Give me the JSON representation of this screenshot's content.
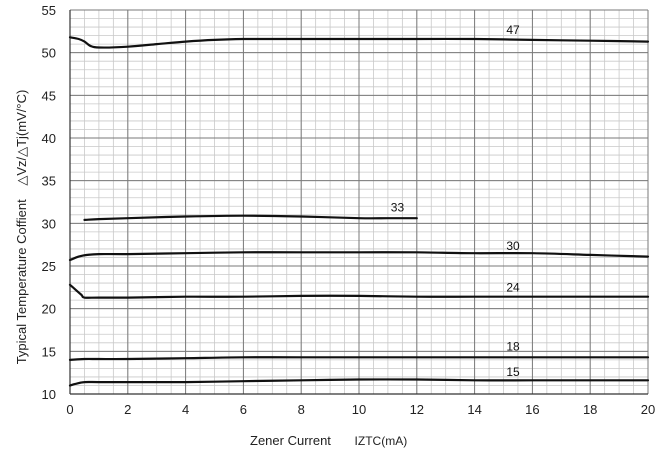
{
  "chart_data": {
    "type": "line",
    "title": "",
    "xlabel": "Zener Current",
    "xlabel_unit": "IZTC(mA)",
    "ylabel": "Typical Temperature Coffient",
    "ylabel_unit": "△Vz/△Tj(mV/°C)",
    "xlim": [
      0,
      20
    ],
    "ylim": [
      10,
      55
    ],
    "xticks": [
      0,
      2,
      4,
      6,
      8,
      10,
      12,
      14,
      16,
      18,
      20
    ],
    "yticks": [
      10,
      15,
      20,
      25,
      30,
      35,
      40,
      45,
      50,
      55
    ],
    "grid": true,
    "minor_grid_x_step": 0.5,
    "minor_grid_y_step": 1,
    "line_color": "#111111",
    "series": [
      {
        "name": "47",
        "label_at": [
          15.1,
          52.2
        ],
        "x": [
          0,
          0.3,
          0.5,
          0.7,
          1,
          2,
          3,
          4,
          5,
          6,
          8,
          10,
          12,
          14,
          16,
          18,
          20
        ],
        "y": [
          51.8,
          51.6,
          51.3,
          50.8,
          50.6,
          50.7,
          51.0,
          51.3,
          51.5,
          51.6,
          51.6,
          51.6,
          51.6,
          51.6,
          51.5,
          51.4,
          51.3
        ]
      },
      {
        "name": "33",
        "label_at": [
          11.1,
          31.4
        ],
        "x": [
          0.5,
          1,
          2,
          4,
          6,
          8,
          10,
          11,
          12
        ],
        "y": [
          30.4,
          30.5,
          30.6,
          30.8,
          30.9,
          30.8,
          30.6,
          30.6,
          30.6
        ]
      },
      {
        "name": "30",
        "label_at": [
          15.1,
          26.9
        ],
        "x": [
          0,
          0.3,
          0.6,
          1,
          2,
          4,
          6,
          8,
          10,
          12,
          14,
          16,
          18,
          20
        ],
        "y": [
          25.7,
          26.1,
          26.3,
          26.4,
          26.4,
          26.5,
          26.6,
          26.6,
          26.6,
          26.6,
          26.5,
          26.5,
          26.3,
          26.1
        ]
      },
      {
        "name": "24",
        "label_at": [
          15.1,
          22.0
        ],
        "x": [
          0,
          0.2,
          0.4,
          0.5,
          1,
          2,
          4,
          6,
          8,
          10,
          12,
          14,
          16,
          18,
          20
        ],
        "y": [
          22.8,
          22.2,
          21.6,
          21.3,
          21.3,
          21.3,
          21.4,
          21.4,
          21.5,
          21.5,
          21.4,
          21.4,
          21.4,
          21.4,
          21.4
        ]
      },
      {
        "name": "18",
        "label_at": [
          15.1,
          15.1
        ],
        "x": [
          0,
          0.5,
          1,
          2,
          4,
          6,
          8,
          10,
          12,
          14,
          16,
          18,
          20
        ],
        "y": [
          14.0,
          14.1,
          14.1,
          14.1,
          14.2,
          14.3,
          14.3,
          14.3,
          14.3,
          14.3,
          14.3,
          14.3,
          14.3
        ]
      },
      {
        "name": "15",
        "label_at": [
          15.1,
          12.1
        ],
        "x": [
          0,
          0.2,
          0.5,
          1,
          2,
          4,
          6,
          8,
          10,
          12,
          14,
          16,
          18,
          20
        ],
        "y": [
          11.0,
          11.2,
          11.4,
          11.4,
          11.4,
          11.4,
          11.5,
          11.6,
          11.7,
          11.7,
          11.6,
          11.6,
          11.6,
          11.6
        ]
      }
    ]
  }
}
